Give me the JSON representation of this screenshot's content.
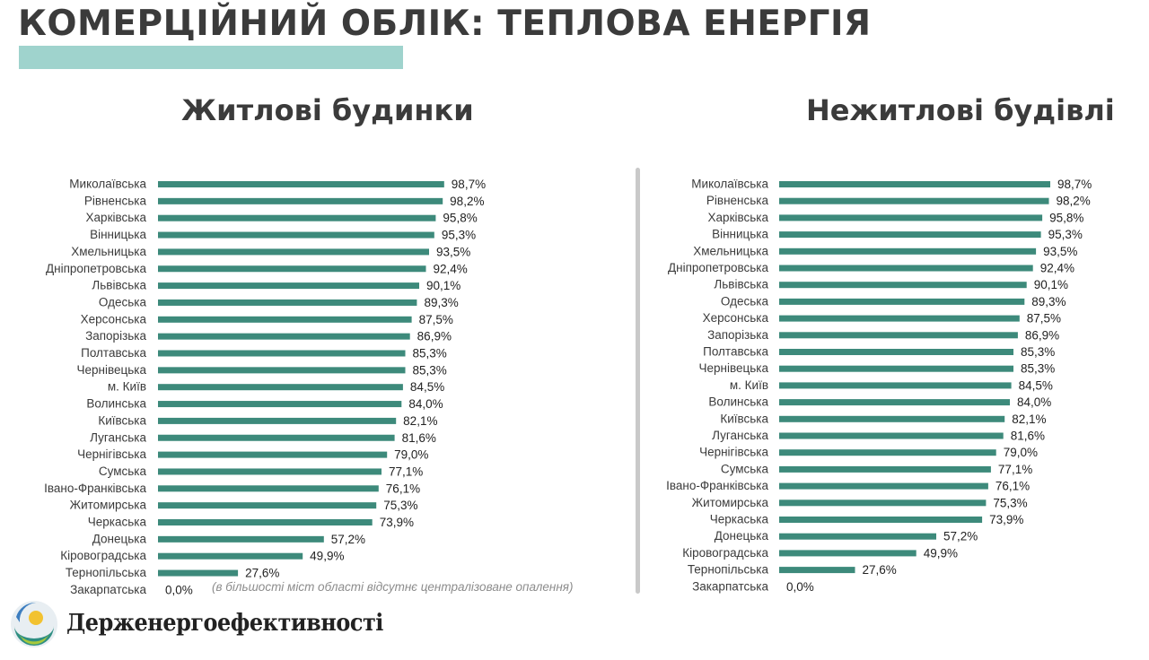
{
  "header": {
    "title": "КОМЕРЦІЙНИЙ ОБЛІК: ТЕПЛОВА ЕНЕРГІЯ",
    "accent_color": "#9fd3cd"
  },
  "footnote": "(в більшості міст області відсутнє централізоване опалення)",
  "brand": {
    "name": "Держенергоефективності"
  },
  "colors": {
    "bar": "#3d8a7b",
    "text": "#3b3b3b"
  },
  "chart_data": [
    {
      "type": "bar",
      "orientation": "horizontal",
      "title": "Житлові будинки",
      "categories": [
        "Миколаївська",
        "Рівненська",
        "Харківська",
        "Вінницька",
        "Хмельницька",
        "Дніпропетровська",
        "Львівська",
        "Одеська",
        "Херсонська",
        "Запорізька",
        "Полтавська",
        "Чернівецька",
        "м. Київ",
        "Волинська",
        "Київська",
        "Луганська",
        "Чернігівська",
        "Сумська",
        "Івано-Франківська",
        "Житомирська",
        "Черкаська",
        "Донецька",
        "Кіровоградська",
        "Тернопільська",
        "Закарпатська"
      ],
      "values": [
        98.7,
        98.2,
        95.8,
        95.3,
        93.5,
        92.4,
        90.1,
        89.3,
        87.5,
        86.9,
        85.3,
        85.3,
        84.5,
        84.0,
        82.1,
        81.6,
        79.0,
        77.1,
        76.1,
        75.3,
        73.9,
        57.2,
        49.9,
        27.6,
        0.0
      ],
      "value_labels": [
        "98,7%",
        "98,2%",
        "95,8%",
        "95,3%",
        "93,5%",
        "92,4%",
        "90,1%",
        "89,3%",
        "87,5%",
        "86,9%",
        "85,3%",
        "85,3%",
        "84,5%",
        "84,0%",
        "82,1%",
        "81,6%",
        "79,0%",
        "77,1%",
        "76,1%",
        "75,3%",
        "73,9%",
        "57,2%",
        "49,9%",
        "27,6%",
        "0,0%"
      ],
      "xlim": [
        0,
        100
      ],
      "grid": false
    },
    {
      "type": "bar",
      "orientation": "horizontal",
      "title": "Нежитлові будівлі",
      "categories": [
        "Миколаївська",
        "Рівненська",
        "Харківська",
        "Вінницька",
        "Хмельницька",
        "Дніпропетровська",
        "Львівська",
        "Одеська",
        "Херсонська",
        "Запорізька",
        "Полтавська",
        "Чернівецька",
        "м. Київ",
        "Волинська",
        "Київська",
        "Луганська",
        "Чернігівська",
        "Сумська",
        "Івано-Франківська",
        "Житомирська",
        "Черкаська",
        "Донецька",
        "Кіровоградська",
        "Тернопільська",
        "Закарпатська"
      ],
      "values": [
        98.7,
        98.2,
        95.8,
        95.3,
        93.5,
        92.4,
        90.1,
        89.3,
        87.5,
        86.9,
        85.3,
        85.3,
        84.5,
        84.0,
        82.1,
        81.6,
        79.0,
        77.1,
        76.1,
        75.3,
        73.9,
        57.2,
        49.9,
        27.6,
        0.0
      ],
      "value_labels": [
        "98,7%",
        "98,2%",
        "95,8%",
        "95,3%",
        "93,5%",
        "92,4%",
        "90,1%",
        "89,3%",
        "87,5%",
        "86,9%",
        "85,3%",
        "85,3%",
        "84,5%",
        "84,0%",
        "82,1%",
        "81,6%",
        "79,0%",
        "77,1%",
        "76,1%",
        "75,3%",
        "73,9%",
        "57,2%",
        "49,9%",
        "27,6%",
        "0,0%"
      ],
      "xlim": [
        0,
        100
      ],
      "grid": false
    }
  ]
}
